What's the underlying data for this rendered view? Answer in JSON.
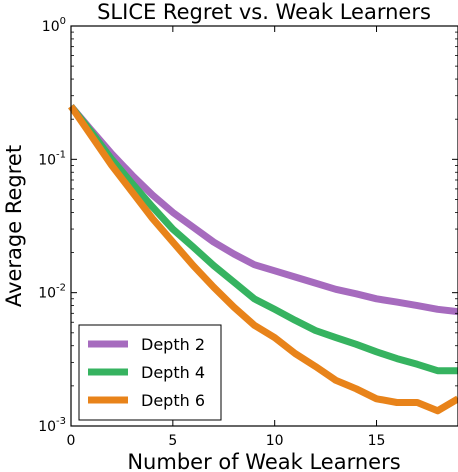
{
  "chart_data": {
    "type": "line",
    "title": "SLICE Regret vs. Weak Learners",
    "xlabel": "Number of Weak Learners",
    "ylabel": "Average Regret",
    "xlim": [
      0,
      19
    ],
    "ylim": [
      0.001,
      1
    ],
    "yscale": "log",
    "x_ticks": [
      {
        "value": 0,
        "label": "0"
      },
      {
        "value": 5,
        "label": "5"
      },
      {
        "value": 10,
        "label": "10"
      },
      {
        "value": 15,
        "label": "15"
      }
    ],
    "y_ticks": [
      {
        "value": 1,
        "base": "10",
        "exp": "0"
      },
      {
        "value": 0.1,
        "base": "10",
        "exp": "-1"
      },
      {
        "value": 0.01,
        "base": "10",
        "exp": "-2"
      },
      {
        "value": 0.001,
        "base": "10",
        "exp": "-3"
      }
    ],
    "grid": false,
    "legend_position": "bottom-left",
    "x": [
      0,
      1,
      2,
      3,
      4,
      5,
      6,
      7,
      8,
      9,
      10,
      11,
      12,
      13,
      14,
      15,
      16,
      17,
      18,
      19
    ],
    "series": [
      {
        "name": "Depth 2",
        "color": "#a66bbe",
        "values": [
          0.25,
          0.165,
          0.11,
          0.076,
          0.054,
          0.04,
          0.031,
          0.024,
          0.0195,
          0.0162,
          0.0146,
          0.0131,
          0.0118,
          0.0106,
          0.0098,
          0.009,
          0.0085,
          0.008,
          0.0075,
          0.0072
        ]
      },
      {
        "name": "Depth 4",
        "color": "#36b360",
        "values": [
          0.25,
          0.16,
          0.1,
          0.066,
          0.044,
          0.03,
          0.022,
          0.016,
          0.012,
          0.009,
          0.0075,
          0.0062,
          0.0052,
          0.0046,
          0.0041,
          0.0036,
          0.0032,
          0.0029,
          0.0026,
          0.0026
        ]
      },
      {
        "name": "Depth 6",
        "color": "#e8831a",
        "values": [
          0.25,
          0.15,
          0.09,
          0.057,
          0.036,
          0.024,
          0.016,
          0.011,
          0.0078,
          0.0057,
          0.0046,
          0.0035,
          0.0028,
          0.0022,
          0.0019,
          0.0016,
          0.0015,
          0.0015,
          0.0013,
          0.0016
        ]
      }
    ]
  }
}
